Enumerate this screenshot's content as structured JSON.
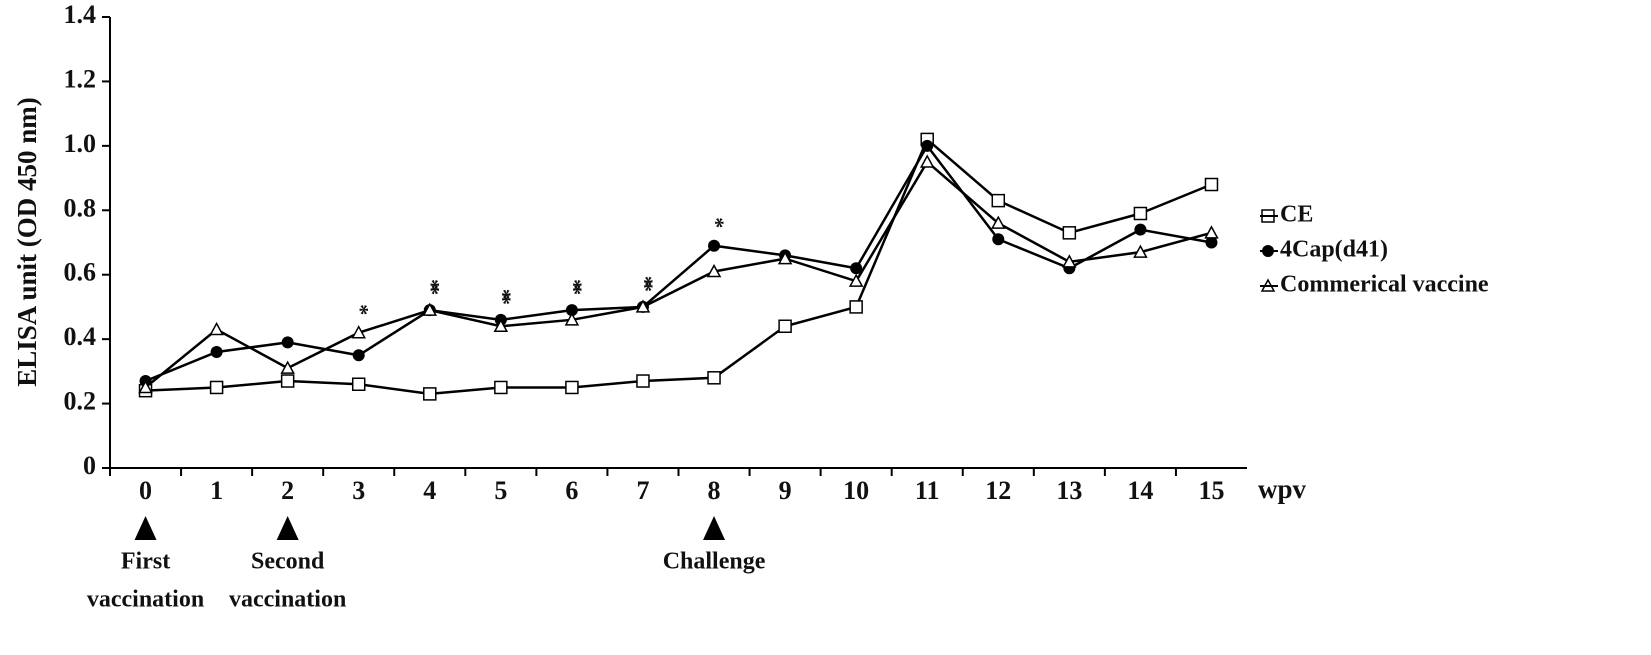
{
  "chart_data": {
    "type": "line",
    "y_label": "ELISA unit (OD 450 nm)",
    "x_label": "wpv",
    "categories": [
      "0",
      "1",
      "2",
      "3",
      "4",
      "5",
      "6",
      "7",
      "8",
      "9",
      "10",
      "11",
      "12",
      "13",
      "14",
      "15"
    ],
    "series": [
      {
        "name": "CE",
        "color": "#000000",
        "marker": "square",
        "values": [
          0.24,
          0.25,
          0.27,
          0.26,
          0.23,
          0.25,
          0.25,
          0.27,
          0.28,
          0.44,
          0.5,
          1.02,
          0.83,
          0.73,
          0.79,
          0.88
        ]
      },
      {
        "name": "4Cap(d41)",
        "color": "#000000",
        "marker": "circle",
        "values": [
          0.27,
          0.36,
          0.39,
          0.35,
          0.49,
          0.46,
          0.49,
          0.5,
          0.69,
          0.66,
          0.62,
          1.0,
          0.71,
          0.62,
          0.74,
          0.7
        ]
      },
      {
        "name": "Commerical vaccine",
        "color": "#000000",
        "marker": "triangle",
        "values": [
          0.25,
          0.43,
          0.31,
          0.42,
          0.49,
          0.44,
          0.46,
          0.5,
          0.61,
          0.65,
          0.58,
          0.95,
          0.76,
          0.64,
          0.67,
          0.73
        ]
      }
    ],
    "ylim": [
      0,
      1.4
    ],
    "yticks": [
      0,
      0.2,
      0.4,
      0.6,
      0.8,
      {
        "value": 1,
        "label": "1.0"
      },
      1.2,
      1.4
    ],
    "legend": "right",
    "annotations": [
      {
        "x": "3",
        "text": "*"
      },
      {
        "x": "4",
        "text": "**"
      },
      {
        "x": "5",
        "text": "**"
      },
      {
        "x": "6",
        "text": "**"
      },
      {
        "x": "7",
        "text": "**"
      },
      {
        "x": "8",
        "text": "*"
      }
    ],
    "events": [
      {
        "x": "0",
        "label": [
          "First",
          "vaccination"
        ]
      },
      {
        "x": "2",
        "label": [
          "Second",
          "vaccination"
        ]
      },
      {
        "x": "8",
        "label": [
          "Challenge"
        ]
      }
    ]
  }
}
